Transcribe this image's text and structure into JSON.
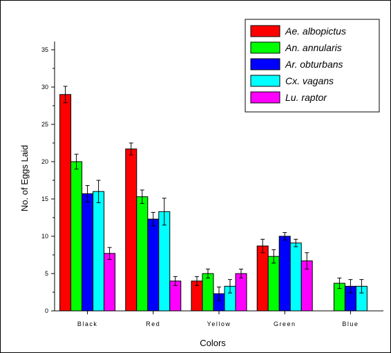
{
  "chart_data": {
    "type": "bar",
    "title": "",
    "xlabel": "Colors",
    "ylabel": "No. of Eggs Laid",
    "ylim": [
      0,
      35
    ],
    "yticks": [
      0,
      5,
      10,
      15,
      20,
      25,
      30,
      35
    ],
    "categories": [
      "Black",
      "Red",
      "Yellow",
      "Green",
      "Blue"
    ],
    "legend_position": "top-right",
    "error_bars": true,
    "series": [
      {
        "name": "Ae. albopictus",
        "color": "#ff0000",
        "values": [
          29.0,
          21.7,
          4.0,
          8.7,
          null
        ],
        "errors": [
          1.1,
          0.8,
          0.6,
          0.9,
          null
        ]
      },
      {
        "name": "An. annularis",
        "color": "#00ff00",
        "values": [
          20.0,
          15.3,
          5.0,
          7.3,
          3.7
        ],
        "errors": [
          1.0,
          0.9,
          0.6,
          0.9,
          0.7
        ]
      },
      {
        "name": "Ar. obturbans",
        "color": "#0000ff",
        "values": [
          15.7,
          12.3,
          2.3,
          10.0,
          3.3
        ],
        "errors": [
          1.1,
          0.9,
          0.9,
          0.5,
          0.9
        ]
      },
      {
        "name": "Cx. vagans",
        "color": "#00ffff",
        "values": [
          16.0,
          13.3,
          3.3,
          9.1,
          3.3
        ],
        "errors": [
          1.5,
          1.8,
          0.9,
          0.5,
          0.9
        ]
      },
      {
        "name": "Lu. raptor",
        "color": "#ff00ff",
        "values": [
          7.7,
          4.0,
          5.0,
          6.7,
          null
        ],
        "errors": [
          0.8,
          0.6,
          0.6,
          1.1,
          null
        ]
      }
    ]
  }
}
